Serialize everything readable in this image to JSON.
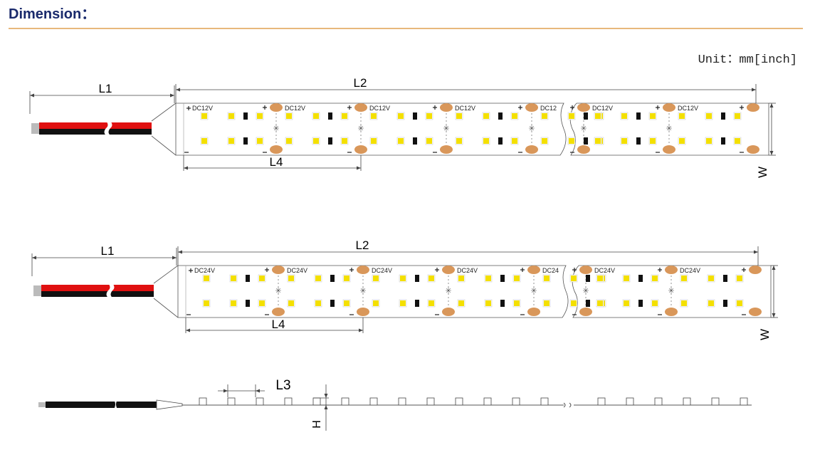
{
  "header": {
    "title": "Dimension："
  },
  "unit": "Unit：mm[inch]",
  "strips": [
    {
      "l1": "L1",
      "l2": "L2",
      "l4": "L4",
      "w": "W",
      "voltage_labels": [
        "DC12V",
        "DC12V",
        "DC12V",
        "DC12V",
        "DC12",
        "DC12V",
        "DC12V"
      ]
    },
    {
      "l1": "L1",
      "l2": "L2",
      "l4": "L4",
      "w": "W",
      "voltage_labels": [
        "DC24V",
        "DC24V",
        "DC24V",
        "DC24V",
        "DC24",
        "DC24V",
        "DC24V"
      ]
    }
  ],
  "side_view": {
    "l3": "L3",
    "h": "H"
  }
}
